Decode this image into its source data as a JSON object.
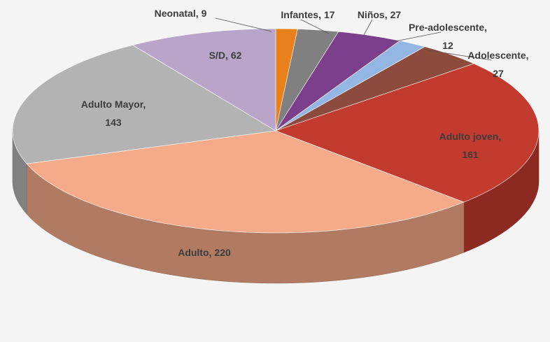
{
  "chart_data": {
    "type": "pie",
    "categories": [
      "Neonatal",
      "Infantes",
      "Niños",
      "Pre-adolescente",
      "Adolescente",
      "Adulto joven",
      "Adulto",
      "Adulto Mayor",
      "S/D"
    ],
    "values": [
      9,
      17,
      27,
      12,
      27,
      161,
      220,
      143,
      62
    ],
    "colors": [
      "#e8801c",
      "#808080",
      "#7b3f8c",
      "#93b6e2",
      "#8c4b3c",
      "#c23b2e",
      "#f5aa8a",
      "#b3b3b3",
      "#b9a5c9"
    ]
  }
}
